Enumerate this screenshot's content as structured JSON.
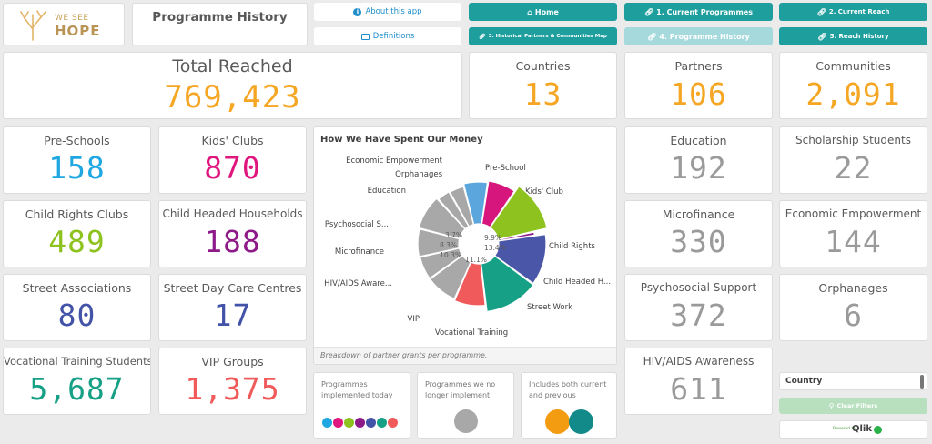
{
  "logo": {
    "line1": "WE SEE",
    "line2": "HOPE"
  },
  "page_title": "Programme History",
  "nav": {
    "about": "About this app",
    "definitions": "Definitions",
    "home": "Home",
    "current_programmes": "1. Current Programmes",
    "current_reach": "2. Current Reach",
    "historical_map": "3. Historical Partners & Communities Map",
    "programme_history": "4. Programme History",
    "reach_history": "5. Reach History"
  },
  "kpis": {
    "total_reached": {
      "label": "Total Reached",
      "value": "769,423",
      "color": "#f5a623"
    },
    "countries": {
      "label": "Countries",
      "value": "13",
      "color": "#f5a623"
    },
    "partners": {
      "label": "Partners",
      "value": "106",
      "color": "#f5a623"
    },
    "communities": {
      "label": "Communities",
      "value": "2,091",
      "color": "#f5a623"
    },
    "pre_schools": {
      "label": "Pre-Schools",
      "value": "158",
      "color": "#1ea7e1"
    },
    "kids_clubs": {
      "label": "Kids' Clubs",
      "value": "870",
      "color": "#e0167f"
    },
    "child_rights_clubs": {
      "label": "Child Rights Clubs",
      "value": "489",
      "color": "#8dc21f"
    },
    "child_headed_households": {
      "label": "Child Headed Households",
      "value": "188",
      "color": "#8e1a8a"
    },
    "street_associations": {
      "label": "Street Associations",
      "value": "80",
      "color": "#4353a8"
    },
    "street_day_care": {
      "label": "Street Day Care Centres",
      "value": "17",
      "color": "#4353a8"
    },
    "vocational_students": {
      "label": "Vocational Training Students",
      "value": "5,687",
      "color": "#16a085"
    },
    "vip_groups": {
      "label": "VIP Groups",
      "value": "1,375",
      "color": "#f05a5b"
    },
    "education": {
      "label": "Education",
      "value": "192",
      "color": "#9a9a9a"
    },
    "scholarship": {
      "label": "Scholarship Students",
      "value": "22",
      "color": "#9a9a9a"
    },
    "microfinance": {
      "label": "Microfinance",
      "value": "330",
      "color": "#9a9a9a"
    },
    "economic_empowerment": {
      "label": "Economic Empowerment",
      "value": "144",
      "color": "#9a9a9a"
    },
    "psychosocial": {
      "label": "Psychosocial Support",
      "value": "372",
      "color": "#9a9a9a"
    },
    "orphanages": {
      "label": "Orphanages",
      "value": "6",
      "color": "#9a9a9a"
    },
    "hiv_aids": {
      "label": "HIV/AIDS Awareness",
      "value": "611",
      "color": "#9a9a9a"
    }
  },
  "chart_caption": "Breakdown of partner grants per programme.",
  "chart_data": {
    "type": "pie",
    "title": "How We Have Spent Our Money",
    "slices": [
      {
        "label": "Pre-School",
        "value": null,
        "color": "#5ba7dd"
      },
      {
        "label": "Kids' Club",
        "value": 9.9,
        "color": "#d6157d"
      },
      {
        "label": "Child Rights",
        "value": 13.4,
        "color": "#8dc21f"
      },
      {
        "label": "Child Headed H...",
        "value": null,
        "color": "#8e1a8a"
      },
      {
        "label": "Street Work",
        "value": null,
        "color": "#4a56a8"
      },
      {
        "label": "Vocational Training",
        "value": 11.1,
        "color": "#16a085"
      },
      {
        "label": "VIP",
        "value": null,
        "color": "#f05a5b"
      },
      {
        "label": "HIV/AIDS Aware...",
        "value": null,
        "color": "#a8a8a8"
      },
      {
        "label": "Microfinance",
        "value": 10.3,
        "color": "#a8a8a8"
      },
      {
        "label": "Psychosocial S...",
        "value": 8.3,
        "color": "#a8a8a8"
      },
      {
        "label": "Education",
        "value": 3.7,
        "color": "#a8a8a8"
      },
      {
        "label": "Orphanages",
        "value": null,
        "color": "#a8a8a8"
      },
      {
        "label": "Economic Empowerment",
        "value": null,
        "color": "#a8a8a8"
      }
    ],
    "value_labels": [
      "3.7%",
      "9.9%",
      "8.3%",
      "13.4%",
      "10.3%",
      "11.1%"
    ]
  },
  "legend_cards": [
    {
      "caption": "Programmes implemented today",
      "colors": [
        "#1ea7e1",
        "#e0167f",
        "#8dc21f",
        "#8e1a8a",
        "#4353a8",
        "#16a085",
        "#f05a5b"
      ]
    },
    {
      "caption": "Programmes we no longer implement",
      "colors": [
        "#a8a8a8"
      ]
    },
    {
      "caption": "Includes both current and previous",
      "colors": [
        "#f39c12",
        "#138a8a"
      ]
    }
  ],
  "filter": {
    "label": "Country",
    "clear": "Clear Filters",
    "powered_by": "Powered by",
    "brand": "Qlik"
  }
}
